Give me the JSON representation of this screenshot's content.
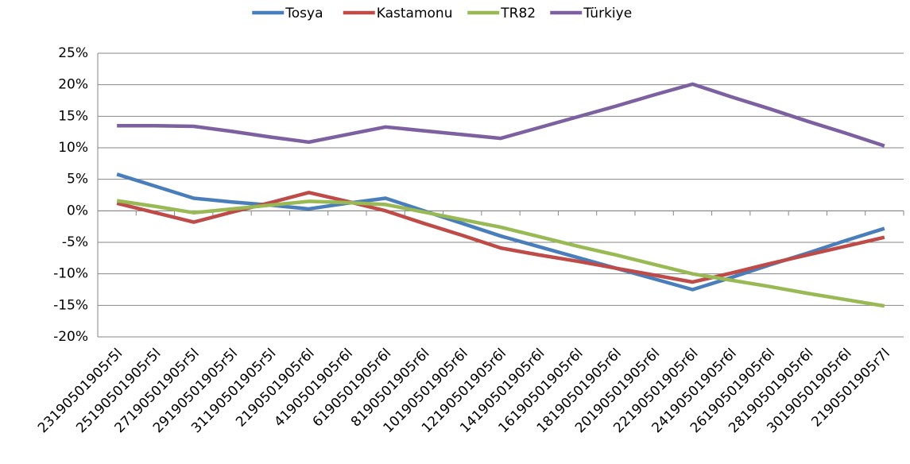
{
  "chart_data": {
    "type": "line",
    "categories": [
      "23190501905r5l",
      "25190501905r5l",
      "27190501905r5l",
      "29190501905r5l",
      "31190501905r5l",
      "2190501905r6l",
      "4190501905r6l",
      "6190501905r6l",
      "8190501905r6l",
      "10190501905r6l",
      "12190501905r6l",
      "14190501905r6l",
      "16190501905r6l",
      "18190501905r6l",
      "20190501905r6l",
      "22190501905r6l",
      "24190501905r6l",
      "26190501905r6l",
      "28190501905r6l",
      "30190501905r6l",
      "2190501905r7l"
    ],
    "series": [
      {
        "name": "Tosya",
        "color": "#4a7ebb",
        "values": [
          5.8,
          3.9,
          2.0,
          1.4,
          0.9,
          0.3,
          1.2,
          2.0,
          0.0,
          -2.0,
          -4.0,
          -5.7,
          -7.4,
          -9.1,
          -10.8,
          -12.5,
          -10.6,
          -8.6,
          -6.7,
          -4.7,
          -2.8
        ]
      },
      {
        "name": "Kastamonu",
        "color": "#be4b48",
        "values": [
          1.2,
          -0.3,
          -1.8,
          -0.2,
          1.3,
          2.9,
          1.5,
          0.0,
          -2.0,
          -3.9,
          -5.9,
          -7.0,
          -8.0,
          -9.1,
          -10.2,
          -11.3,
          -9.9,
          -8.4,
          -7.0,
          -5.6,
          -4.2
        ]
      },
      {
        "name": "TR82",
        "color": "#98b954",
        "values": [
          1.6,
          0.7,
          -0.3,
          0.3,
          0.9,
          1.5,
          1.3,
          1.0,
          -0.2,
          -1.4,
          -2.6,
          -4.1,
          -5.6,
          -7.0,
          -8.5,
          -10.0,
          -11.0,
          -12.0,
          -13.1,
          -14.1,
          -15.1
        ]
      },
      {
        "name": "Türkiye",
        "color": "#7d60a0",
        "values": [
          13.5,
          13.5,
          13.4,
          12.6,
          11.7,
          10.9,
          12.1,
          13.3,
          12.7,
          12.1,
          11.5,
          13.2,
          14.9,
          16.6,
          18.4,
          20.1,
          18.1,
          16.2,
          14.2,
          12.3,
          10.3
        ]
      }
    ],
    "ylim": [
      -20,
      25
    ],
    "yticks": [
      {
        "value": -20,
        "label": "-20%"
      },
      {
        "value": -15,
        "label": "-15%"
      },
      {
        "value": -10,
        "label": "-10%"
      },
      {
        "value": -5,
        "label": "-5%"
      },
      {
        "value": 0,
        "label": "0%"
      },
      {
        "value": 5,
        "label": "5%"
      },
      {
        "value": 10,
        "label": "10%"
      },
      {
        "value": 15,
        "label": "15%"
      },
      {
        "value": 20,
        "label": "20%"
      },
      {
        "value": 25,
        "label": "25%"
      }
    ],
    "grid": true,
    "legend": "top"
  }
}
